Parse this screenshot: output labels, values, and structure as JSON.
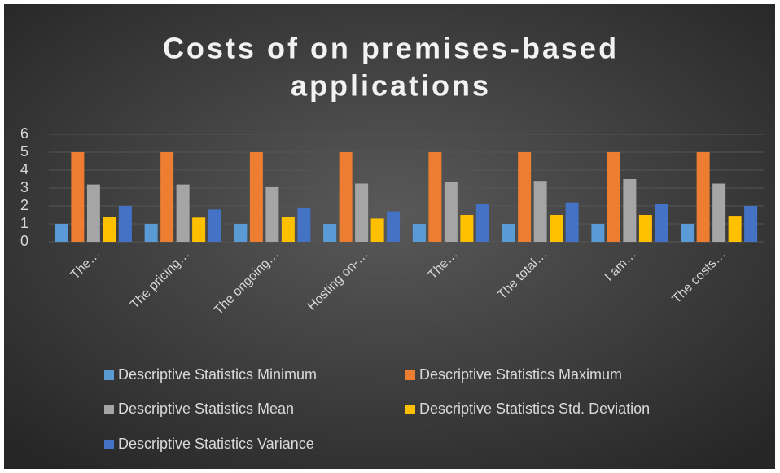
{
  "chart_data": {
    "type": "bar",
    "title": [
      "Costs of on premises-based",
      "applications"
    ],
    "categories": [
      "The…",
      "The pricing…",
      "The ongoing…",
      "Hosting on-…",
      "The…",
      "The total…",
      "I am…",
      "The costs…"
    ],
    "series": [
      {
        "name": "Descriptive Statistics Minimum",
        "color": "#5b9bd5",
        "values": [
          1,
          1,
          1,
          1,
          1,
          1,
          1,
          1
        ]
      },
      {
        "name": "Descriptive Statistics Maximum",
        "color": "#ed7d31",
        "values": [
          5,
          5,
          5,
          5,
          5,
          5,
          5,
          5
        ]
      },
      {
        "name": "Descriptive Statistics Mean",
        "color": "#a5a5a5",
        "values": [
          3.2,
          3.2,
          3.05,
          3.25,
          3.35,
          3.4,
          3.5,
          3.25
        ]
      },
      {
        "name": "Descriptive Statistics Std. Deviation",
        "color": "#ffc000",
        "values": [
          1.4,
          1.35,
          1.4,
          1.3,
          1.5,
          1.5,
          1.5,
          1.45
        ]
      },
      {
        "name": "Descriptive Statistics Variance",
        "color": "#4472c4",
        "values": [
          2.0,
          1.8,
          1.9,
          1.7,
          2.1,
          2.2,
          2.1,
          2.0
        ]
      }
    ],
    "ylim": [
      0,
      6
    ],
    "yticks": [
      0,
      1,
      2,
      3,
      4,
      5,
      6
    ],
    "grid": true,
    "legend": "bottom"
  }
}
